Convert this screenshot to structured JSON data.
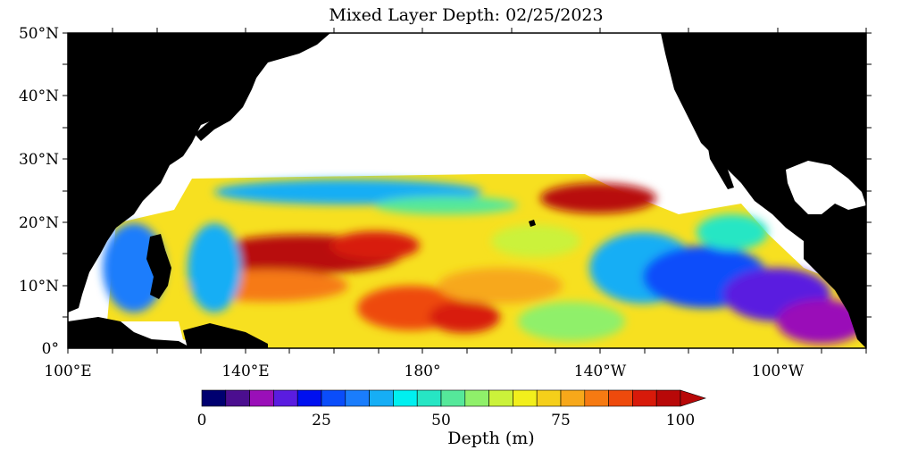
{
  "title": "Mixed Layer Depth: 02/25/2023",
  "map": {
    "lat_labels": [
      "50°N",
      "40°N",
      "30°N",
      "20°N",
      "10°N",
      "0°"
    ],
    "lon_labels": [
      "100°E",
      "140°E",
      "180°",
      "140°W",
      "100°W"
    ],
    "land_color": "#000000",
    "ocean_nodata_color": "#ffffff"
  },
  "colorbar": {
    "label": "Depth (m)",
    "tick_labels": [
      "0",
      "25",
      "50",
      "75",
      "100"
    ],
    "min": 0,
    "max": 100,
    "step": 5,
    "colors": [
      "#000070",
      "#4b0e8f",
      "#9a0fb8",
      "#5a1ce0",
      "#0010f0",
      "#0a4dfa",
      "#1a7dfc",
      "#16aef5",
      "#00f0f0",
      "#26e6c4",
      "#55e89a",
      "#8ff06a",
      "#cbf23a",
      "#f2ef1c",
      "#f5cf1a",
      "#f7a81a",
      "#f67a12",
      "#ee4a0c",
      "#d81a0a",
      "#b80808"
    ]
  }
}
